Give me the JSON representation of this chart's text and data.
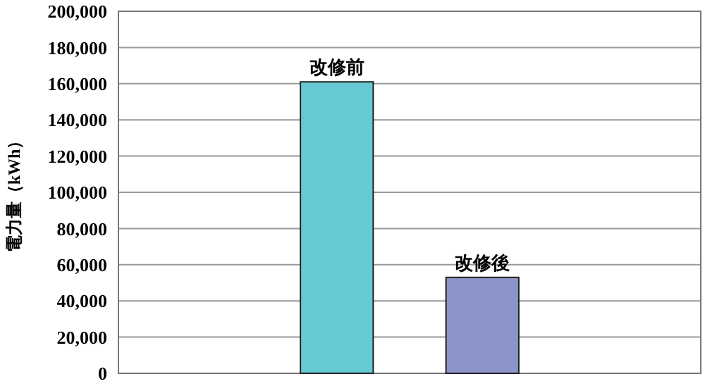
{
  "chart_data": {
    "type": "bar",
    "ylabel": "電力量（kWh）",
    "categories": [
      null,
      null,
      null,
      null
    ],
    "series": [
      {
        "name": "改修前",
        "color": "#66c9d3",
        "values": [
          null,
          161000,
          null,
          null
        ]
      },
      {
        "name": "改修後",
        "color": "#8c95c9",
        "values": [
          null,
          null,
          53000,
          null
        ]
      }
    ],
    "ylim": [
      0,
      200000
    ],
    "yticks": [
      {
        "value": 0,
        "label": "0"
      },
      {
        "value": 20000,
        "label": "20,000"
      },
      {
        "value": 40000,
        "label": "40,000"
      },
      {
        "value": 60000,
        "label": "60,000"
      },
      {
        "value": 80000,
        "label": "80,000"
      },
      {
        "value": 100000,
        "label": "100,000"
      },
      {
        "value": 120000,
        "label": "120,000"
      },
      {
        "value": 140000,
        "label": "140,000"
      },
      {
        "value": 160000,
        "label": "160,000"
      },
      {
        "value": 180000,
        "label": "180,000"
      },
      {
        "value": 200000,
        "label": "200,000"
      }
    ],
    "grid": "y"
  }
}
